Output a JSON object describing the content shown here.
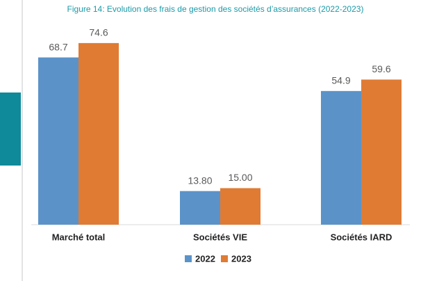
{
  "chart_data": {
    "type": "bar",
    "title": "Figure 14: Evolution des frais de gestion des sociétés d’assurances (2022-2023)",
    "categories": [
      "Marché total",
      "Sociétés VIE",
      "Sociétés IARD"
    ],
    "series": [
      {
        "name": "2022",
        "color": "#5b93c9",
        "values": [
          68.7,
          13.8,
          54.9
        ],
        "value_labels": [
          "68.7",
          "13.80",
          "54.9"
        ]
      },
      {
        "name": "2023",
        "color": "#e07b34",
        "values": [
          74.6,
          15.0,
          59.6
        ],
        "value_labels": [
          "74.6",
          "15.00",
          "59.6"
        ]
      }
    ],
    "ylim": [
      0,
      80
    ],
    "legend": "bottom"
  }
}
